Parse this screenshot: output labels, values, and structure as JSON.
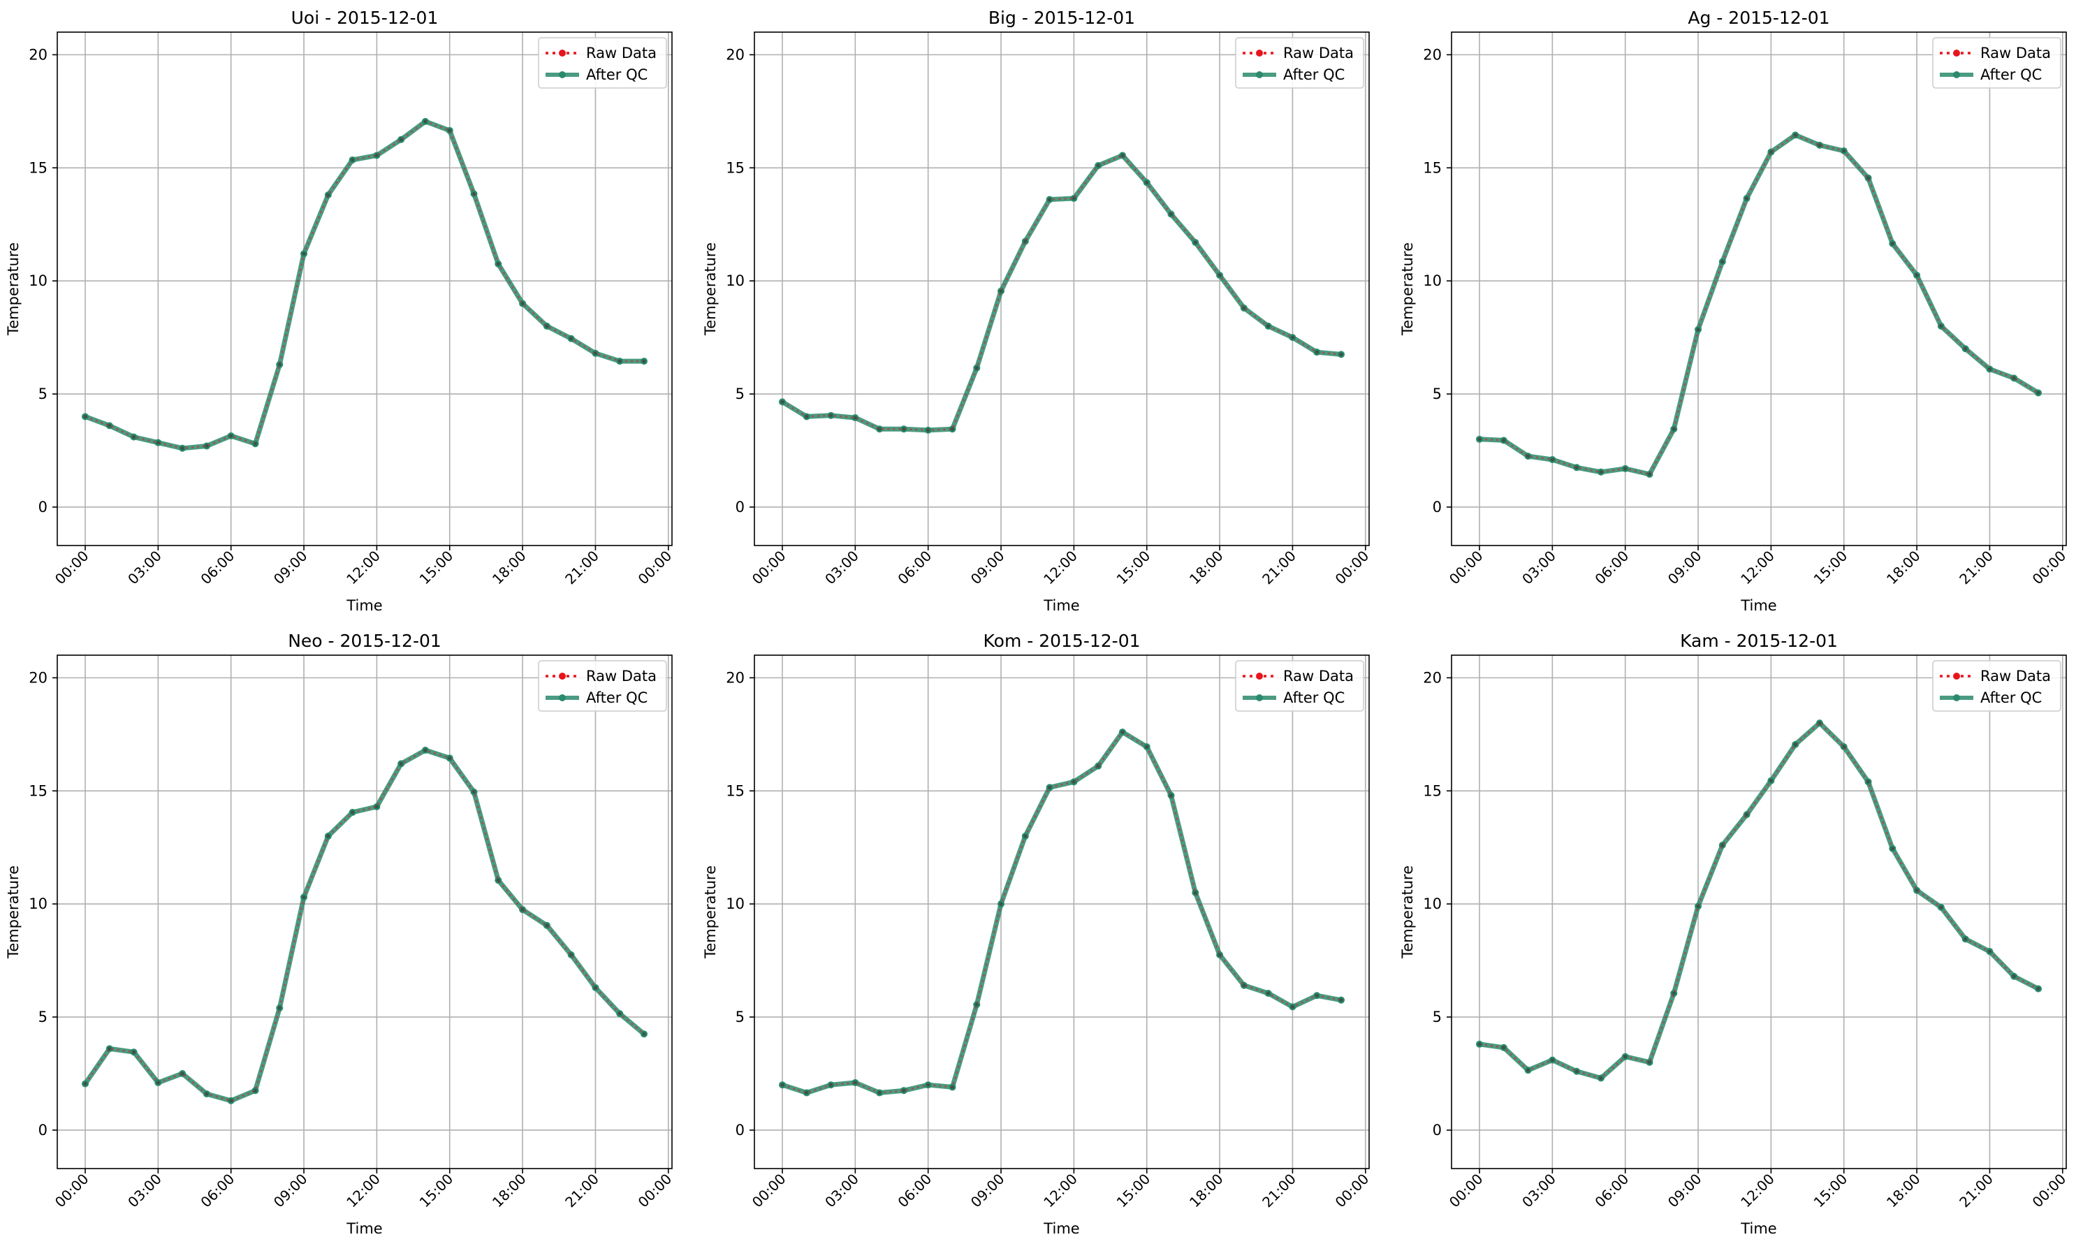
{
  "legend": {
    "raw_label": "Raw Data",
    "qc_label": "After QC",
    "placement": "upper right"
  },
  "colors": {
    "raw": "#e8141c",
    "qc": "#2a8a6c",
    "grid": "#b0b0b0"
  },
  "chart_data": [
    {
      "type": "line",
      "title": "Uoi - 2015-12-01",
      "xlabel": "Time",
      "ylabel": "Temperature",
      "x_ticks": [
        "00:00",
        "03:00",
        "06:00",
        "09:00",
        "12:00",
        "15:00",
        "18:00",
        "21:00",
        "00:00"
      ],
      "y_ticks": [
        0,
        5,
        10,
        15,
        20
      ],
      "ylim": [
        -1.7,
        21
      ],
      "grid": true,
      "series": [
        {
          "name": "Raw Data",
          "values": [
            4.0,
            3.6,
            3.1,
            2.85,
            2.6,
            2.7,
            3.15,
            2.8,
            6.3,
            11.2,
            13.8,
            15.35,
            15.55,
            16.25,
            17.05,
            16.65,
            13.85,
            10.75,
            9.0,
            8.0,
            7.45,
            6.8,
            6.45,
            6.45
          ]
        },
        {
          "name": "After QC",
          "values": [
            4.0,
            3.6,
            3.1,
            2.85,
            2.6,
            2.7,
            3.15,
            2.8,
            6.3,
            11.2,
            13.8,
            15.35,
            15.55,
            16.25,
            17.05,
            16.65,
            13.85,
            10.75,
            9.0,
            8.0,
            7.45,
            6.8,
            6.45,
            6.45
          ]
        }
      ]
    },
    {
      "type": "line",
      "title": "Big - 2015-12-01",
      "xlabel": "Time",
      "ylabel": "Temperature",
      "x_ticks": [
        "00:00",
        "03:00",
        "06:00",
        "09:00",
        "12:00",
        "15:00",
        "18:00",
        "21:00",
        "00:00"
      ],
      "y_ticks": [
        0,
        5,
        10,
        15,
        20
      ],
      "ylim": [
        -1.7,
        21
      ],
      "grid": true,
      "series": [
        {
          "name": "Raw Data",
          "values": [
            4.65,
            4.0,
            4.05,
            3.95,
            3.45,
            3.45,
            3.4,
            3.45,
            6.15,
            9.55,
            11.75,
            13.6,
            13.65,
            15.1,
            15.55,
            14.35,
            12.95,
            11.7,
            10.25,
            8.8,
            8.0,
            7.5,
            6.85,
            6.75
          ]
        },
        {
          "name": "After QC",
          "values": [
            4.65,
            4.0,
            4.05,
            3.95,
            3.45,
            3.45,
            3.4,
            3.45,
            6.15,
            9.55,
            11.75,
            13.6,
            13.65,
            15.1,
            15.55,
            14.35,
            12.95,
            11.7,
            10.25,
            8.8,
            8.0,
            7.5,
            6.85,
            6.75
          ]
        }
      ]
    },
    {
      "type": "line",
      "title": "Ag - 2015-12-01",
      "xlabel": "Time",
      "ylabel": "Temperature",
      "x_ticks": [
        "00:00",
        "03:00",
        "06:00",
        "09:00",
        "12:00",
        "15:00",
        "18:00",
        "21:00",
        "00:00"
      ],
      "y_ticks": [
        0,
        5,
        10,
        15,
        20
      ],
      "ylim": [
        -1.7,
        21
      ],
      "grid": true,
      "series": [
        {
          "name": "Raw Data",
          "values": [
            3.0,
            2.95,
            2.25,
            2.1,
            1.75,
            1.55,
            1.7,
            1.45,
            3.45,
            7.85,
            10.85,
            13.65,
            15.7,
            16.45,
            16.0,
            15.75,
            14.55,
            11.65,
            10.25,
            8.0,
            7.0,
            6.1,
            5.7,
            5.05
          ]
        },
        {
          "name": "After QC",
          "values": [
            3.0,
            2.95,
            2.25,
            2.1,
            1.75,
            1.55,
            1.7,
            1.45,
            3.45,
            7.85,
            10.85,
            13.65,
            15.7,
            16.45,
            16.0,
            15.75,
            14.55,
            11.65,
            10.25,
            8.0,
            7.0,
            6.1,
            5.7,
            5.05
          ]
        }
      ]
    },
    {
      "type": "line",
      "title": "Neo - 2015-12-01",
      "xlabel": "Time",
      "ylabel": "Temperature",
      "x_ticks": [
        "00:00",
        "03:00",
        "06:00",
        "09:00",
        "12:00",
        "15:00",
        "18:00",
        "21:00",
        "00:00"
      ],
      "y_ticks": [
        0,
        5,
        10,
        15,
        20
      ],
      "ylim": [
        -1.7,
        21
      ],
      "grid": true,
      "series": [
        {
          "name": "Raw Data",
          "values": [
            2.05,
            3.6,
            3.45,
            2.1,
            2.5,
            1.6,
            1.3,
            1.75,
            5.4,
            10.3,
            13.0,
            14.05,
            14.3,
            16.2,
            16.8,
            16.45,
            14.95,
            11.05,
            9.75,
            9.05,
            7.75,
            6.3,
            5.15,
            4.25
          ]
        },
        {
          "name": "After QC",
          "values": [
            2.05,
            3.6,
            3.45,
            2.1,
            2.5,
            1.6,
            1.3,
            1.75,
            5.4,
            10.3,
            13.0,
            14.05,
            14.3,
            16.2,
            16.8,
            16.45,
            14.95,
            11.05,
            9.75,
            9.05,
            7.75,
            6.3,
            5.15,
            4.25
          ]
        }
      ]
    },
    {
      "type": "line",
      "title": "Kom - 2015-12-01",
      "xlabel": "Time",
      "ylabel": "Temperature",
      "x_ticks": [
        "00:00",
        "03:00",
        "06:00",
        "09:00",
        "12:00",
        "15:00",
        "18:00",
        "21:00",
        "00:00"
      ],
      "y_ticks": [
        0,
        5,
        10,
        15,
        20
      ],
      "ylim": [
        -1.7,
        21
      ],
      "grid": true,
      "series": [
        {
          "name": "Raw Data",
          "values": [
            2.0,
            1.65,
            2.0,
            2.1,
            1.65,
            1.75,
            2.0,
            1.9,
            5.55,
            10.0,
            13.0,
            15.15,
            15.4,
            16.1,
            17.6,
            16.95,
            14.8,
            10.5,
            7.75,
            6.4,
            6.05,
            5.45,
            5.95,
            5.75
          ]
        },
        {
          "name": "After QC",
          "values": [
            2.0,
            1.65,
            2.0,
            2.1,
            1.65,
            1.75,
            2.0,
            1.9,
            5.55,
            10.0,
            13.0,
            15.15,
            15.4,
            16.1,
            17.6,
            16.95,
            14.8,
            10.5,
            7.75,
            6.4,
            6.05,
            5.45,
            5.95,
            5.75
          ]
        }
      ]
    },
    {
      "type": "line",
      "title": "Kam - 2015-12-01",
      "xlabel": "Time",
      "ylabel": "Temperature",
      "x_ticks": [
        "00:00",
        "03:00",
        "06:00",
        "09:00",
        "12:00",
        "15:00",
        "18:00",
        "21:00",
        "00:00"
      ],
      "y_ticks": [
        0,
        5,
        10,
        15,
        20
      ],
      "ylim": [
        -1.7,
        21
      ],
      "grid": true,
      "series": [
        {
          "name": "Raw Data",
          "values": [
            3.8,
            3.65,
            2.65,
            3.1,
            2.6,
            2.3,
            3.25,
            3.0,
            6.05,
            9.9,
            12.6,
            13.95,
            15.45,
            17.05,
            18.0,
            16.95,
            15.4,
            12.45,
            10.6,
            9.85,
            8.45,
            7.9,
            6.8,
            6.25
          ]
        },
        {
          "name": "After QC",
          "values": [
            3.8,
            3.65,
            2.65,
            3.1,
            2.6,
            2.3,
            3.25,
            3.0,
            6.05,
            9.9,
            12.6,
            13.95,
            15.45,
            17.05,
            18.0,
            16.95,
            15.4,
            12.45,
            10.6,
            9.85,
            8.45,
            7.9,
            6.8,
            6.25
          ]
        }
      ]
    }
  ]
}
